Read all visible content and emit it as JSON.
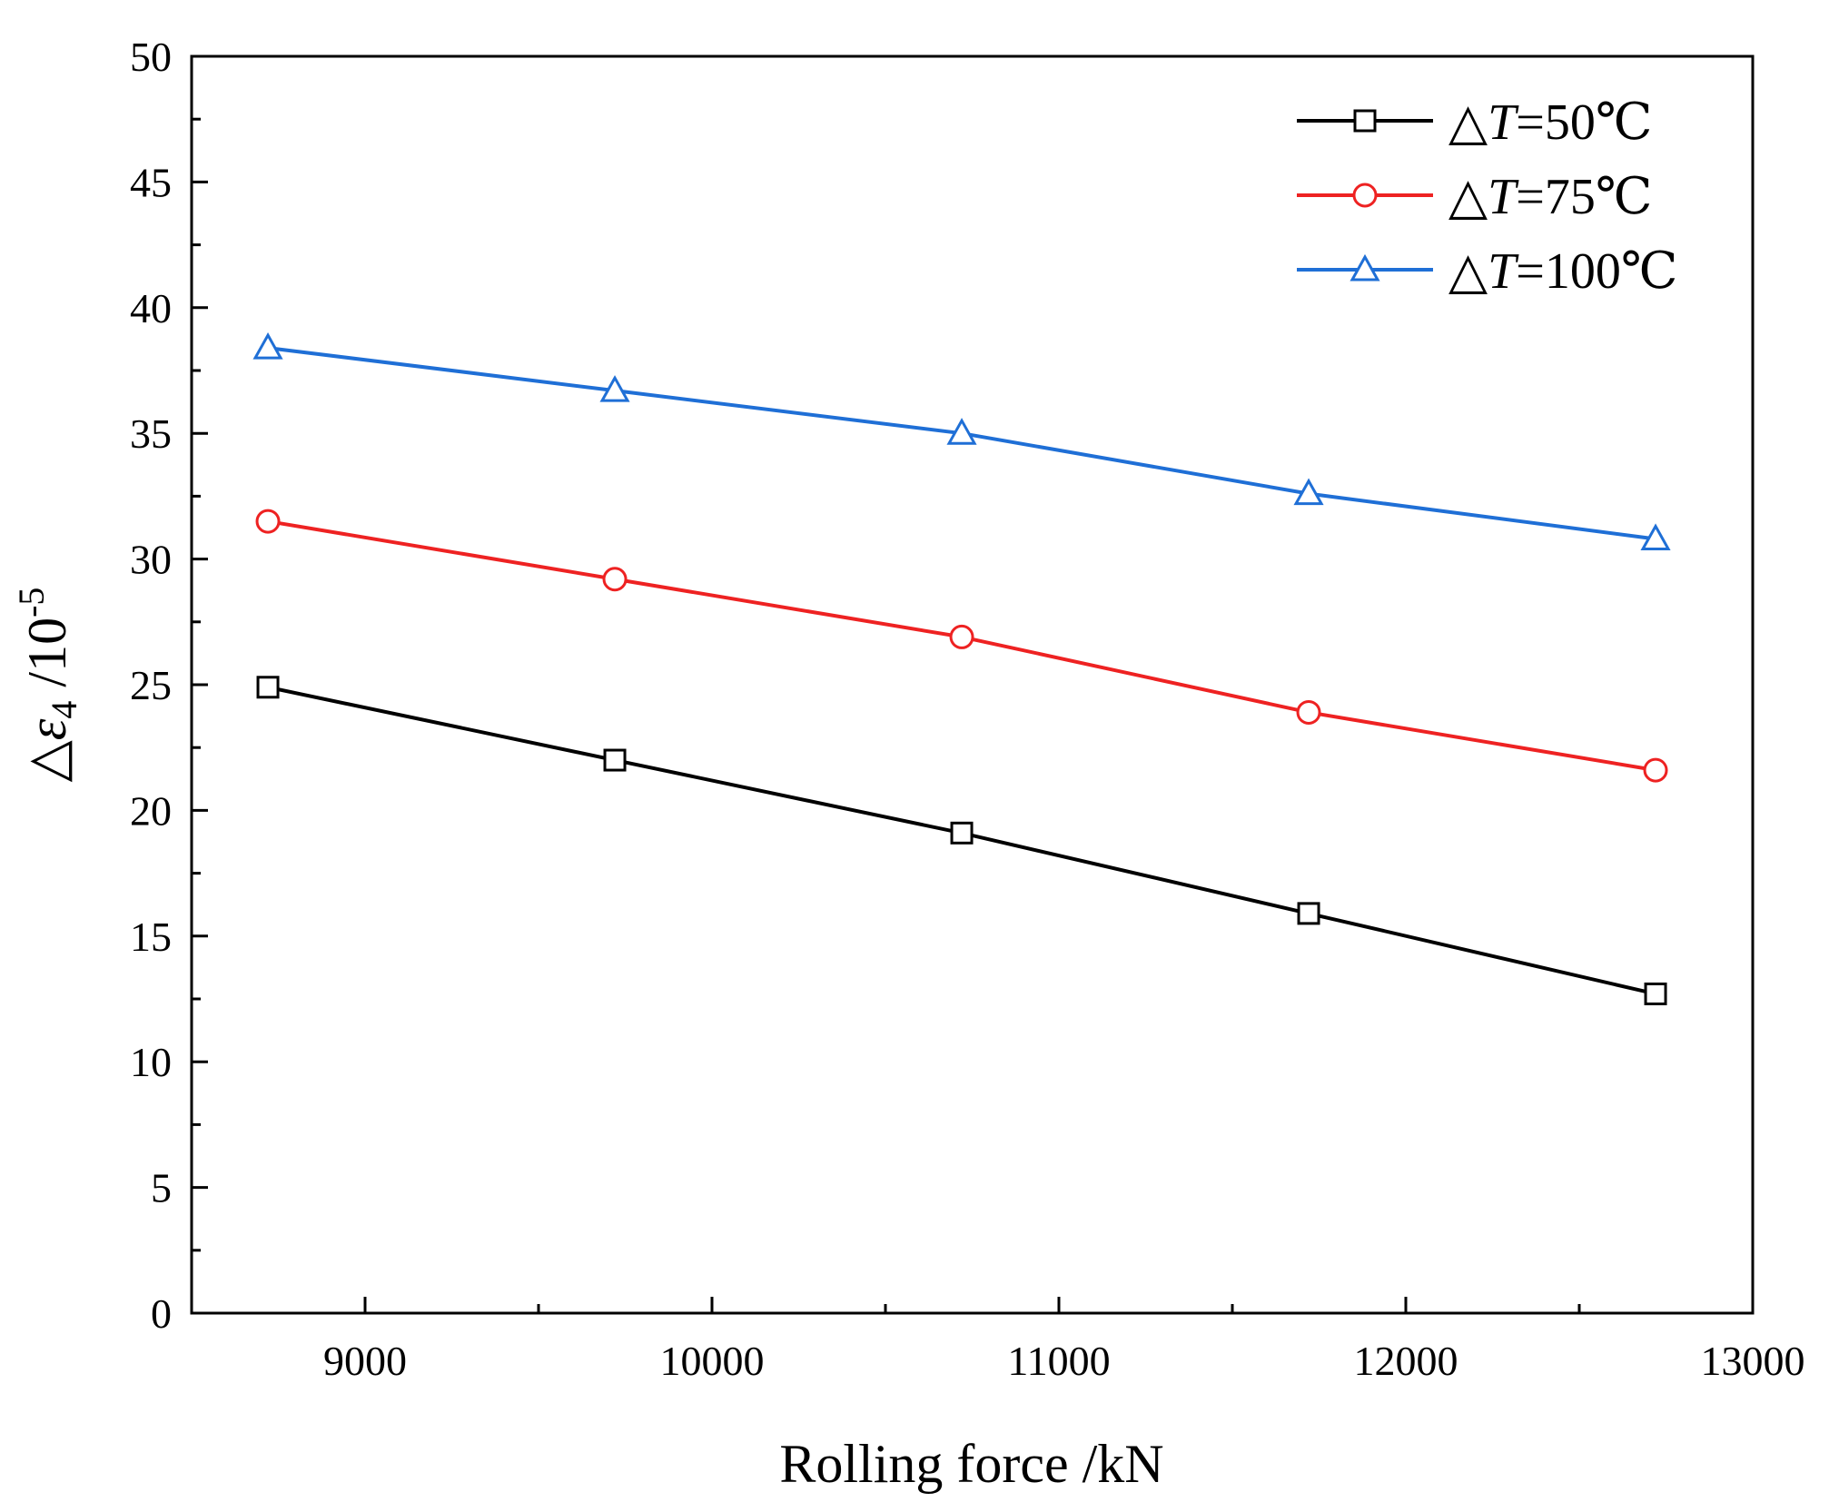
{
  "chart_data": {
    "type": "line",
    "xlabel": "Rolling force /kN",
    "ylabel": {
      "prefix": "△",
      "symbol": "ε",
      "subscript": "4",
      "unit": " /10",
      "superscript": "-5"
    },
    "xlim": [
      8500,
      13000
    ],
    "ylim": [
      0,
      50
    ],
    "xticks": [
      9000,
      10000,
      11000,
      12000,
      13000
    ],
    "yticks": [
      0,
      5,
      10,
      15,
      20,
      25,
      30,
      35,
      40,
      45,
      50
    ],
    "x": [
      8720,
      9720,
      10720,
      11720,
      12720
    ],
    "series": [
      {
        "name": "△T=50℃",
        "label_prefix": "△",
        "label_var": "T",
        "label_value": "=50℃",
        "color": "#000000",
        "marker": "square",
        "values": [
          24.9,
          22.0,
          19.1,
          15.9,
          12.7
        ]
      },
      {
        "name": "△T=75℃",
        "label_prefix": "△",
        "label_var": "T",
        "label_value": "=75℃",
        "color": "#ee2222",
        "marker": "circle",
        "values": [
          31.5,
          29.2,
          26.9,
          23.9,
          21.6
        ]
      },
      {
        "name": "△T=100℃",
        "label_prefix": "△",
        "label_var": "T",
        "label_value": "=100℃",
        "color": "#1f6fd6",
        "marker": "triangle",
        "values": [
          38.4,
          36.7,
          35.0,
          32.6,
          30.8
        ]
      }
    ],
    "legend": "top-right",
    "grid": false
  }
}
